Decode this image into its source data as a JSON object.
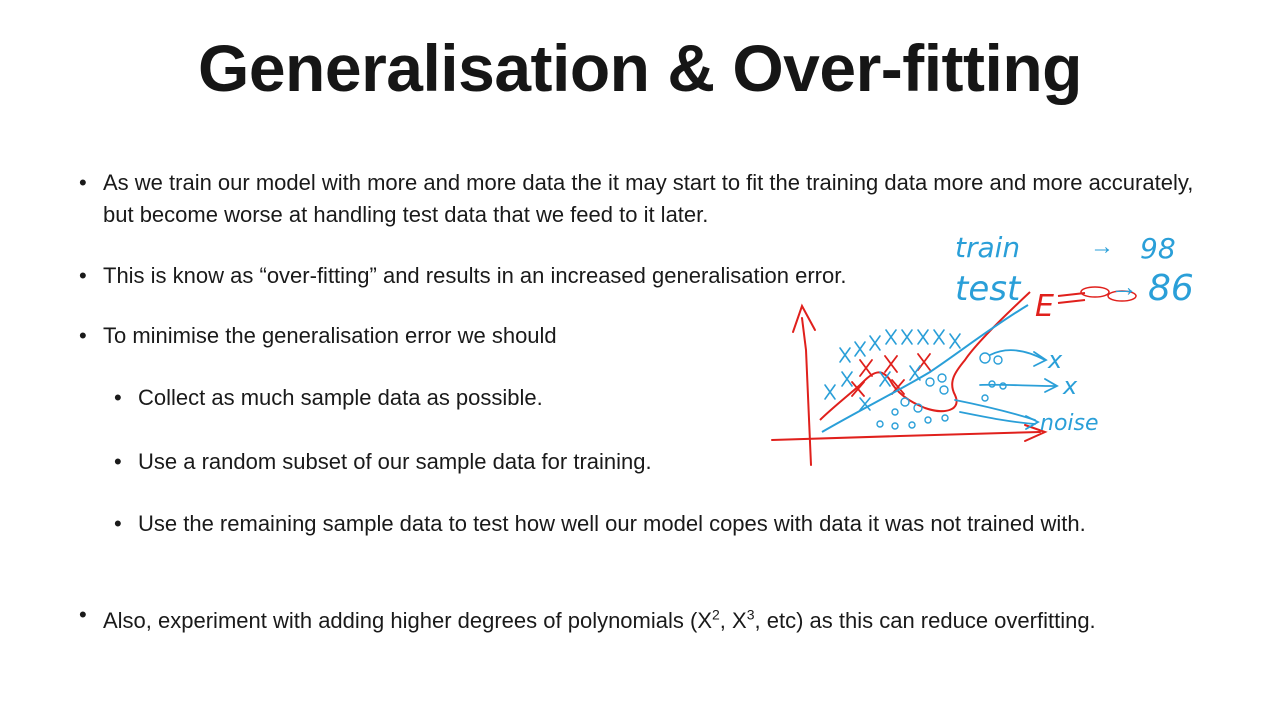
{
  "slide": {
    "title": "Generalisation & Over-fitting",
    "bullets": {
      "b1": "As we train our model with more and more data the it may start to fit the training data more and more accurately, but become worse at handling test data that we feed to it later.",
      "b2": "This is know as “over-fitting” and results in an increased generalisation error.",
      "b3": "To minimise the generalisation error we should",
      "s1": "Collect as much sample data as possible.",
      "s2": "Use a random subset of our sample data for training.",
      "s3": "Use the remaining sample data to test how well our model copes with data it was not trained with.",
      "b4_pre": "Also, experiment with adding higher degrees of polynomials (X",
      "b4_sup2": "2",
      "b4_mid": ", X",
      "b4_sup3": "3",
      "b4_post": ", etc) as this can reduce overfitting."
    },
    "bullet_glyph": "•"
  },
  "annotations": {
    "train_label": "train",
    "train_value": "98",
    "test_label": "test",
    "test_value": "86",
    "arrow_glyph": "→",
    "e_label": "E",
    "x_label_1": "x",
    "x_label_2": "x",
    "noise_label": "noise",
    "blue_color": "#2a9fd8",
    "red_color": "#e0201c"
  }
}
